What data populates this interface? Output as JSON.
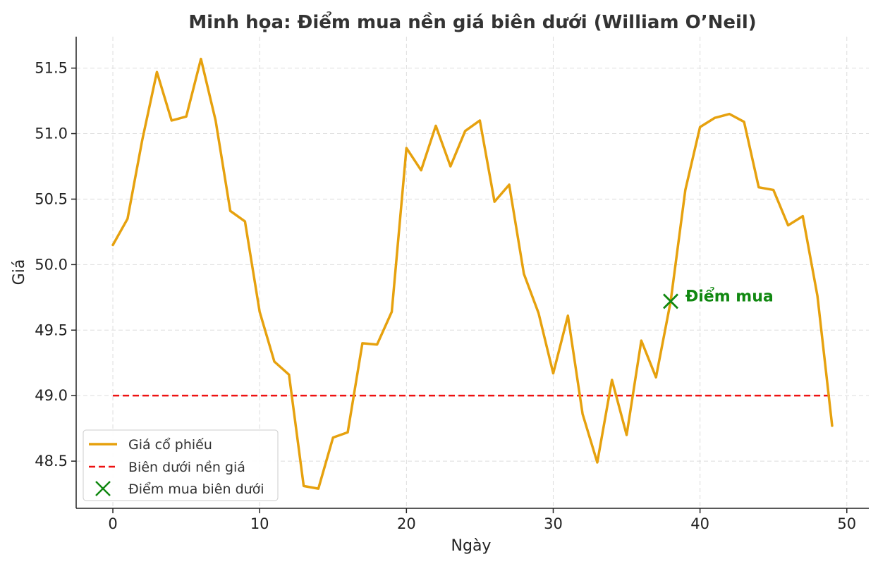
{
  "chart_data": {
    "type": "line",
    "title": "Minh họa: Điểm mua nền giá biên dưới (William O’Neil)",
    "xlabel": "Ngày",
    "ylabel": "Giá",
    "xlim": [
      -2.5,
      51.5
    ],
    "ylim": [
      48.14,
      51.74
    ],
    "xticks": [
      0,
      10,
      20,
      30,
      40,
      50
    ],
    "xtick_labels": [
      "0",
      "10",
      "20",
      "30",
      "40",
      "50"
    ],
    "yticks": [
      48.5,
      49.0,
      49.5,
      50.0,
      50.5,
      51.0,
      51.5
    ],
    "ytick_labels": [
      "48.5",
      "49.0",
      "49.5",
      "50.0",
      "50.5",
      "51.0",
      "51.5"
    ],
    "grid": true,
    "legend_position": "bottom-left",
    "series": [
      {
        "name": "Giá cổ phiếu",
        "kind": "line",
        "color": "#E6A10E",
        "x": [
          0,
          1,
          2,
          3,
          4,
          5,
          6,
          7,
          8,
          9,
          10,
          11,
          12,
          13,
          14,
          15,
          16,
          17,
          18,
          19,
          20,
          21,
          22,
          23,
          24,
          25,
          26,
          27,
          28,
          29,
          30,
          31,
          32,
          33,
          34,
          35,
          36,
          37,
          38,
          39,
          40,
          41,
          42,
          43,
          44,
          45,
          46,
          47,
          48,
          49
        ],
        "values": [
          50.15,
          50.35,
          50.95,
          51.47,
          51.1,
          51.13,
          51.57,
          51.1,
          50.41,
          50.33,
          49.64,
          49.26,
          49.16,
          48.31,
          48.29,
          48.68,
          48.72,
          49.4,
          49.39,
          49.64,
          50.89,
          50.72,
          51.06,
          50.75,
          51.02,
          51.1,
          50.48,
          50.61,
          49.93,
          49.63,
          49.17,
          49.61,
          48.86,
          48.49,
          49.12,
          48.7,
          49.42,
          49.14,
          49.72,
          50.57,
          51.05,
          51.12,
          51.15,
          51.09,
          50.59,
          50.57,
          50.3,
          50.37,
          49.76,
          48.77
        ]
      },
      {
        "name": "Biên dưới nền giá",
        "kind": "hline",
        "color": "#EE1111",
        "y": 49.0,
        "x_range": [
          0,
          49
        ]
      },
      {
        "name": "Điểm mua biên dưới",
        "kind": "scatter",
        "color": "#118811",
        "marker": "x",
        "x": [
          38
        ],
        "values": [
          49.72
        ]
      }
    ],
    "annotations": [
      {
        "text": "Điểm mua",
        "x": 39,
        "y": 49.72,
        "color": "#118811"
      }
    ]
  }
}
